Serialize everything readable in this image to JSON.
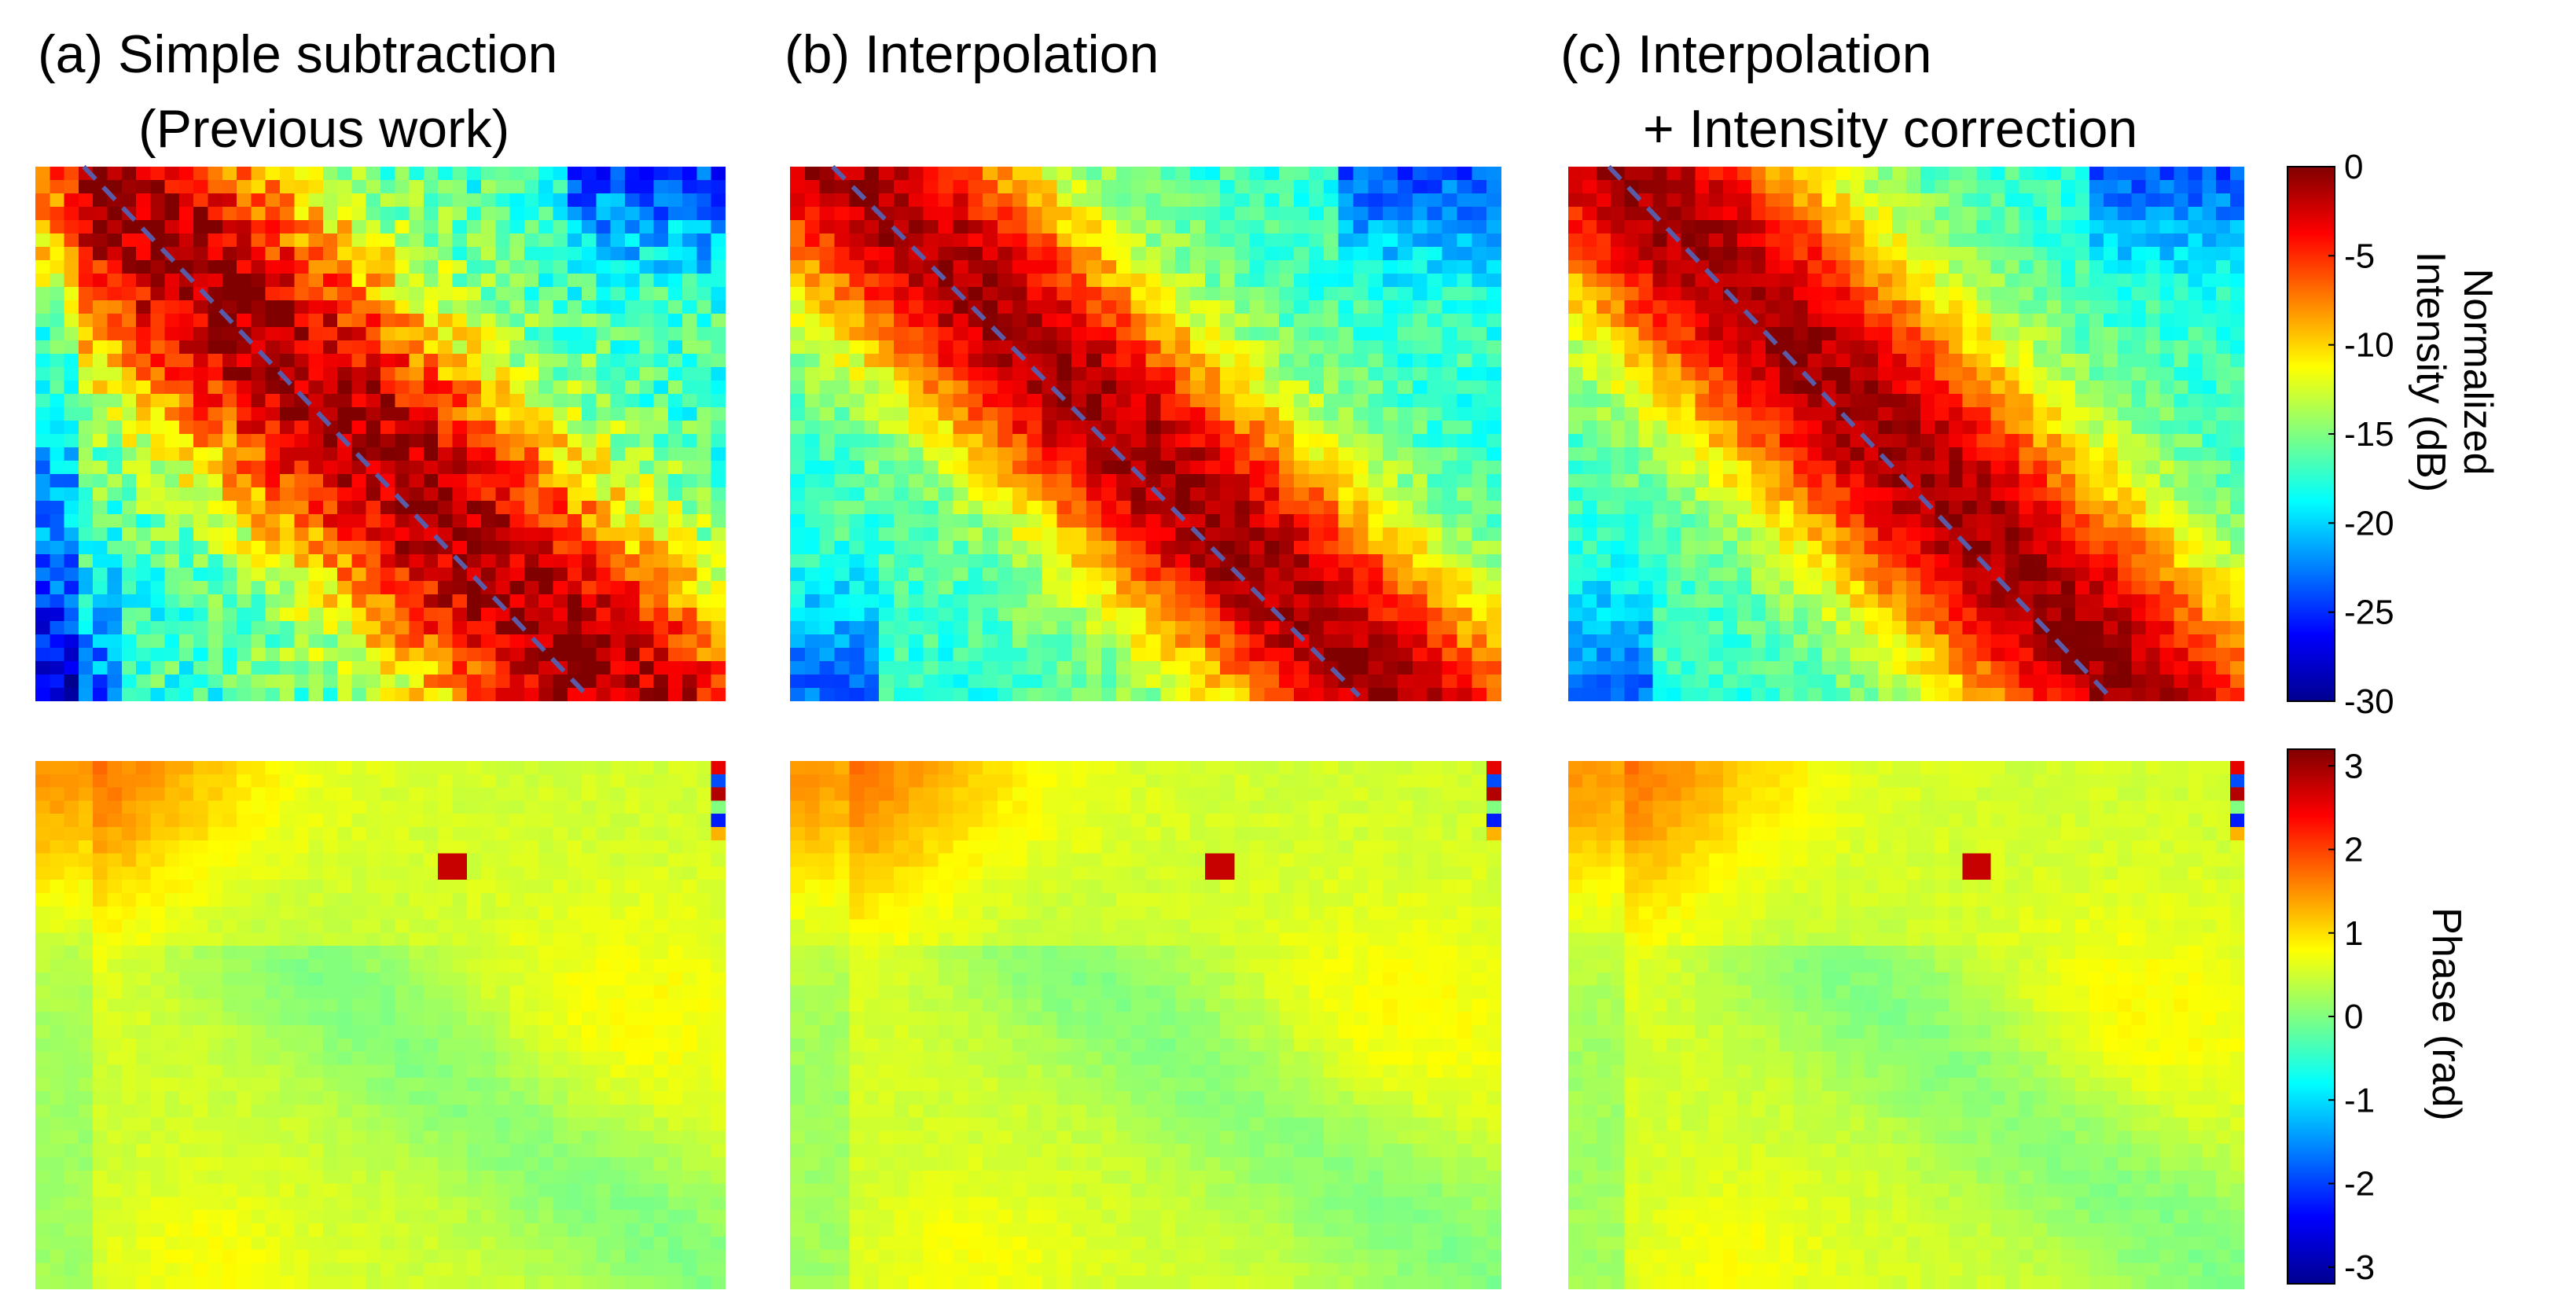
{
  "chart_data": [
    {
      "type": "heatmap",
      "quantity": "intensity",
      "panels": [
        {
          "title_lines": [
            "(a) Simple subtraction",
            "(Previous work)"
          ],
          "diagonal_line": true
        },
        {
          "title_lines": [
            "(b) Interpolation"
          ],
          "diagonal_line": true
        },
        {
          "title_lines": [
            "(c) Interpolation",
            "+ Intensity correction"
          ],
          "diagonal_line": true
        }
      ],
      "colormap": "jet",
      "colorbar": {
        "label_lines": [
          "Normalized",
          "Intensity (dB)"
        ],
        "range": [
          -30,
          0
        ],
        "ticks": [
          "0",
          "-5",
          "-10",
          "-15",
          "-20",
          "-25",
          "-30"
        ]
      }
    },
    {
      "type": "heatmap",
      "quantity": "phase",
      "panels": [
        {},
        {},
        {}
      ],
      "colormap": "jet",
      "colorbar": {
        "label_lines": [
          "Phase (rad)"
        ],
        "range": [
          -3.2,
          3.2
        ],
        "ticks": [
          "3",
          "2",
          "1",
          "0",
          "-1",
          "-2",
          "-3"
        ]
      }
    }
  ],
  "colors": {
    "diagonal_line": "#5a5aa6",
    "jet_stops": [
      "#00008f",
      "#0000ff",
      "#0080ff",
      "#00ffff",
      "#80ff80",
      "#ffff00",
      "#ff8000",
      "#ff0000",
      "#800000"
    ]
  }
}
